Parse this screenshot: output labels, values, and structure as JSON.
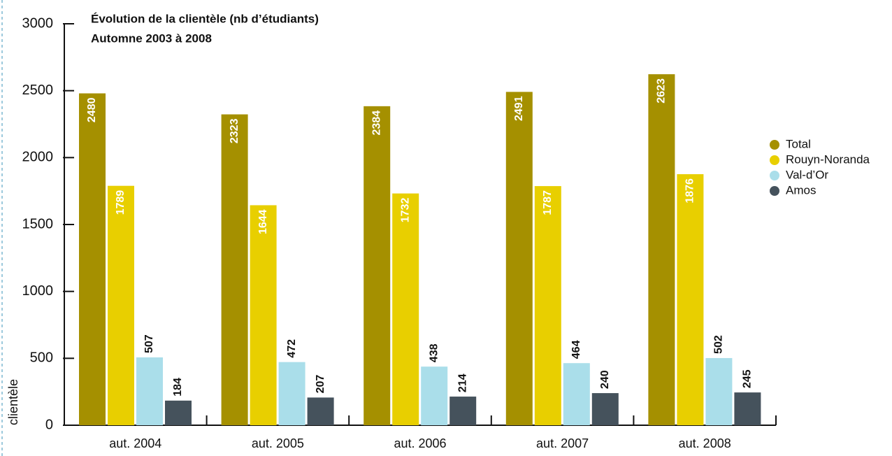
{
  "chart_data": {
    "type": "bar",
    "title": "Évolution de la clientèle (nb d’étudiants)",
    "subtitle": "Automne 2003 à 2008",
    "y_label": "clientèle",
    "categories": [
      "aut. 2004",
      "aut. 2005",
      "aut. 2006",
      "aut. 2007",
      "aut. 2008"
    ],
    "series": [
      {
        "name": "Total",
        "color": "#a59000",
        "values": [
          2480,
          2323,
          2384,
          2491,
          2623
        ]
      },
      {
        "name": "Rouyn-Noranda",
        "color": "#e8cf00",
        "values": [
          1789,
          1644,
          1732,
          1787,
          1876
        ]
      },
      {
        "name": "Val-d’Or",
        "color": "#aadeea",
        "values": [
          507,
          472,
          438,
          464,
          502
        ]
      },
      {
        "name": "Amos",
        "color": "#45525c",
        "values": [
          184,
          207,
          214,
          240,
          245
        ]
      }
    ],
    "ylim": [
      0,
      3000
    ],
    "yticks": [
      0,
      500,
      1000,
      1500,
      2000,
      2500,
      3000
    ],
    "legend": "right"
  }
}
